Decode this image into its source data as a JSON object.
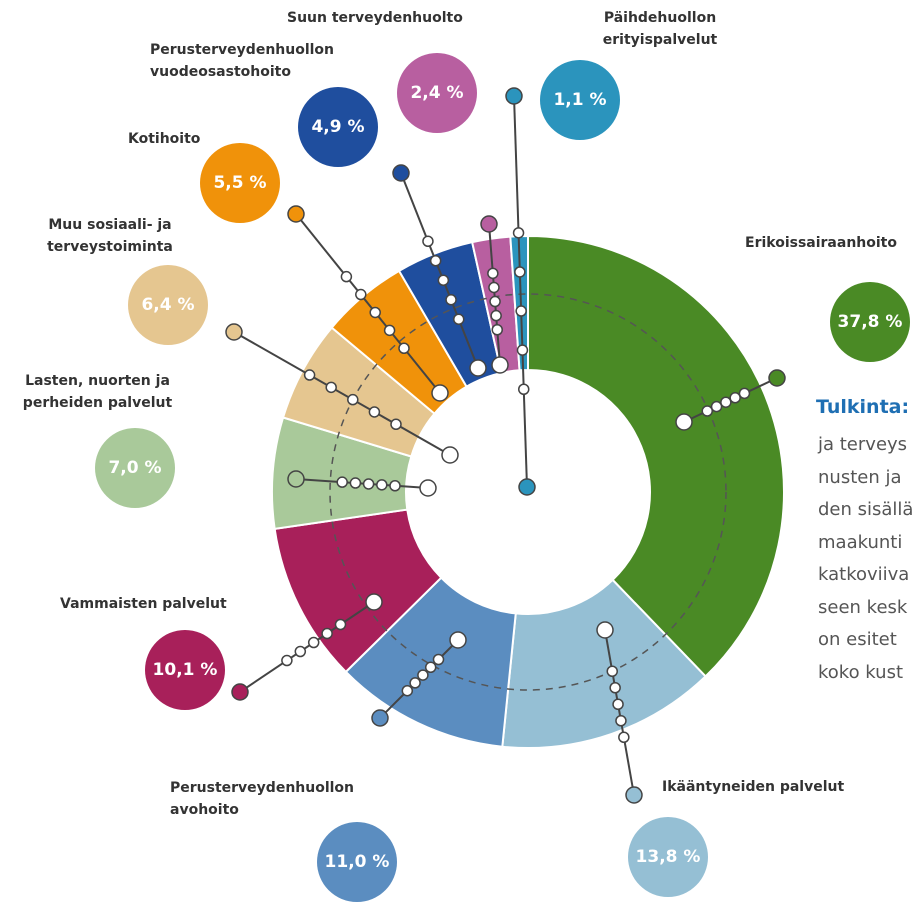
{
  "chart_data": {
    "type": "donut",
    "categories": [
      "Erikoissairaanhoito",
      "Ikääntyneiden palvelut",
      "Perusterveydenhuollon avohoito",
      "Vammaisten palvelut",
      "Lasten, nuorten ja perheiden palvelut",
      "Muu sosiaali- ja terveystoiminta",
      "Kotihoito",
      "Perusterveydenhuollon vuodeosastohoito",
      "Suun terveydenhuolto",
      "Päihdehuollon erityispalvelut"
    ],
    "values": [
      37.8,
      13.8,
      11.0,
      10.1,
      7.0,
      6.4,
      5.5,
      4.9,
      2.4,
      1.1
    ],
    "value_labels": [
      "37,8 %",
      "13,8 %",
      "11,0 %",
      "10,1 %",
      "7,0 %",
      "6,4 %",
      "5,5 %",
      "4,9 %",
      "2,4 %",
      "1,1 %"
    ],
    "colors": [
      "#4a8a25",
      "#95bfd4",
      "#5b8dc0",
      "#a8205a",
      "#a9c99a",
      "#e5c690",
      "#f0920a",
      "#1f4e9e",
      "#b85fa0",
      "#2b94bd"
    ],
    "annotation": {
      "title": "Tulkinta:",
      "lines": [
        "ja terveys",
        "nusten ja",
        "den sisällä",
        "maakunti",
        "katkoviiva",
        "seen kesk",
        "on esitet",
        "koko kust"
      ]
    }
  }
}
